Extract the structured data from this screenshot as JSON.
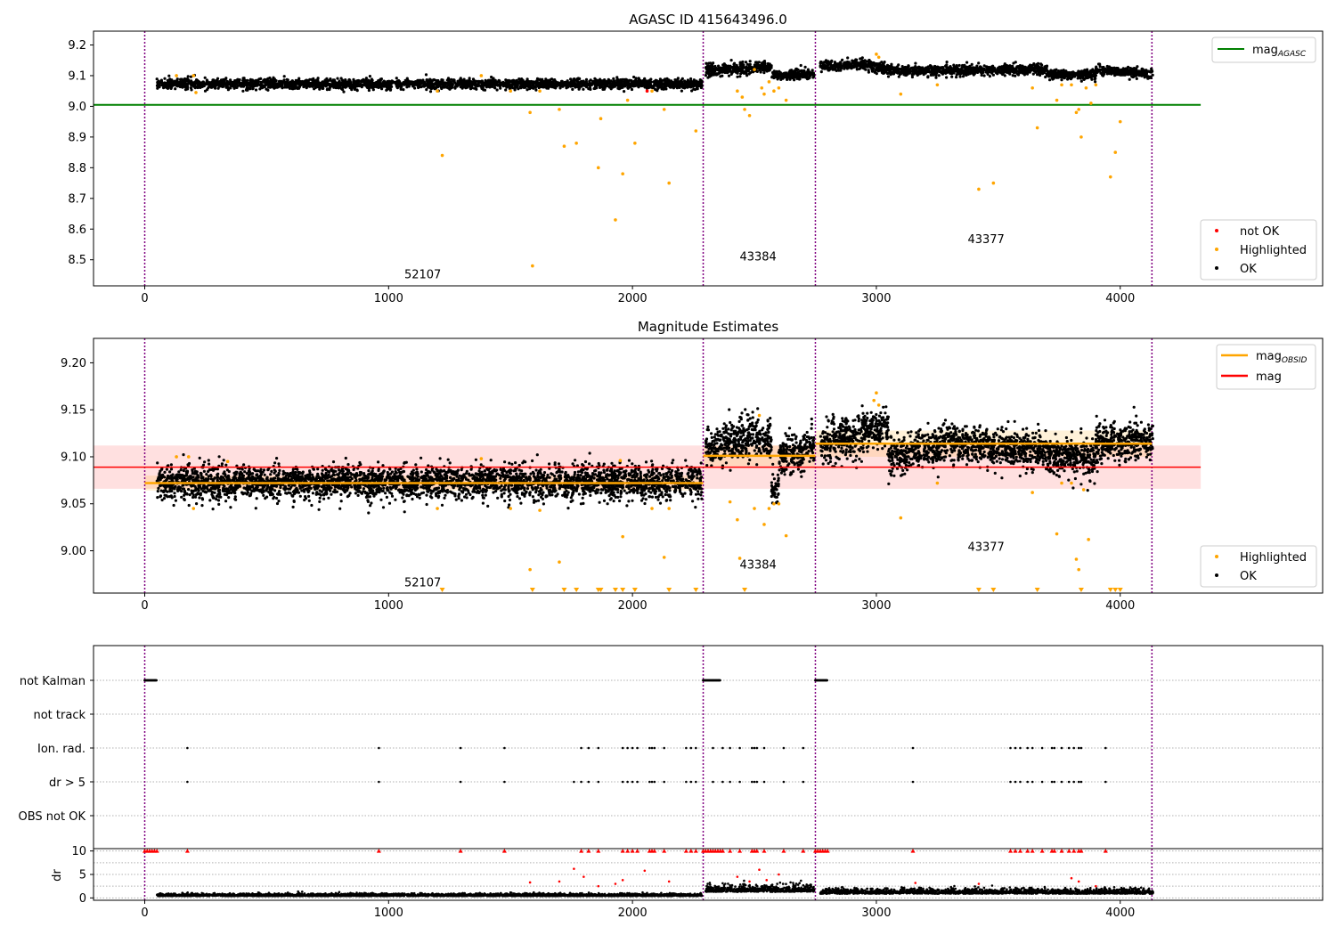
{
  "chart_data": [
    {
      "type": "scatter",
      "title": "AGASC ID 415643496.0",
      "xlabel": "",
      "ylabel": "",
      "xlim": [
        -210,
        4830
      ],
      "ylim": [
        8.415,
        9.245
      ],
      "xticks": [
        0,
        1000,
        2000,
        3000,
        4000
      ],
      "yticks": [
        8.5,
        8.6,
        8.7,
        8.8,
        8.9,
        9.0,
        9.1,
        9.2
      ],
      "ytick_labels": [
        "8.5",
        "8.6",
        "8.7",
        "8.8",
        "8.9",
        "9.0",
        "9.1",
        "9.2"
      ],
      "reference_lines": [
        {
          "name": "mag",
          "subscript": "AGASC",
          "y": 9.005,
          "x0": -210,
          "x1": 4330,
          "color": "#008000"
        }
      ],
      "obsid_boundaries": [
        0,
        2290,
        2750,
        4130
      ],
      "obsid_labels": [
        {
          "text": "52107",
          "x": 1140,
          "y": 8.44
        },
        {
          "text": "43384",
          "x": 2515,
          "y": 8.497
        },
        {
          "text": "43377",
          "x": 3450,
          "y": 8.555
        }
      ],
      "segments": [
        {
          "x0": 50,
          "x1": 2285,
          "mean": 9.073,
          "spread": 0.008,
          "trend": 0.0
        },
        {
          "x0": 2300,
          "x1": 2500,
          "mean": 9.115,
          "spread": 0.01,
          "trend": 0.01
        },
        {
          "x0": 2500,
          "x1": 2570,
          "mean": 9.128,
          "spread": 0.008,
          "trend": 0.0
        },
        {
          "x0": 2570,
          "x1": 2745,
          "mean": 9.1,
          "spread": 0.008,
          "trend": 0.006
        },
        {
          "x0": 2770,
          "x1": 2950,
          "mean": 9.13,
          "spread": 0.008,
          "trend": 0.008
        },
        {
          "x0": 2950,
          "x1": 3100,
          "mean": 9.135,
          "spread": 0.008,
          "trend": -0.02
        },
        {
          "x0": 3100,
          "x1": 3700,
          "mean": 9.115,
          "spread": 0.008,
          "trend": 0.005
        },
        {
          "x0": 3700,
          "x1": 3900,
          "mean": 9.103,
          "spread": 0.008,
          "trend": 0.0
        },
        {
          "x0": 3900,
          "x1": 4135,
          "mean": 9.118,
          "spread": 0.008,
          "trend": -0.01
        }
      ],
      "highlighted_points": [
        [
          130,
          9.1
        ],
        [
          200,
          9.1
        ],
        [
          210,
          9.045
        ],
        [
          1220,
          8.84
        ],
        [
          1200,
          9.05
        ],
        [
          1380,
          9.1
        ],
        [
          1500,
          9.05
        ],
        [
          1580,
          8.98
        ],
        [
          1590,
          8.48
        ],
        [
          1620,
          9.05
        ],
        [
          1700,
          8.99
        ],
        [
          1720,
          8.87
        ],
        [
          1770,
          8.88
        ],
        [
          1860,
          8.8
        ],
        [
          1870,
          8.96
        ],
        [
          1930,
          8.63
        ],
        [
          1960,
          8.78
        ],
        [
          1980,
          9.02
        ],
        [
          2010,
          8.88
        ],
        [
          2080,
          9.05
        ],
        [
          2130,
          8.99
        ],
        [
          2150,
          8.75
        ],
        [
          2260,
          8.92
        ],
        [
          2430,
          9.05
        ],
        [
          2450,
          9.03
        ],
        [
          2460,
          8.99
        ],
        [
          2480,
          8.97
        ],
        [
          2500,
          9.12
        ],
        [
          2530,
          9.06
        ],
        [
          2540,
          9.04
        ],
        [
          2560,
          9.08
        ],
        [
          2580,
          9.05
        ],
        [
          2600,
          9.06
        ],
        [
          2630,
          9.02
        ],
        [
          3000,
          9.17
        ],
        [
          3010,
          9.16
        ],
        [
          3100,
          9.04
        ],
        [
          3250,
          9.07
        ],
        [
          3420,
          8.73
        ],
        [
          3480,
          8.75
        ],
        [
          3640,
          9.06
        ],
        [
          3660,
          8.93
        ],
        [
          3740,
          9.02
        ],
        [
          3760,
          9.07
        ],
        [
          3800,
          9.07
        ],
        [
          3820,
          8.98
        ],
        [
          3830,
          8.99
        ],
        [
          3840,
          8.9
        ],
        [
          3860,
          9.06
        ],
        [
          3900,
          9.07
        ],
        [
          3960,
          8.77
        ],
        [
          3980,
          8.85
        ],
        [
          4000,
          8.95
        ],
        [
          3880,
          9.01
        ]
      ],
      "not_ok_points": [
        [
          2060,
          9.05
        ]
      ],
      "legend_upper": {
        "position": "upper right",
        "entries": [
          {
            "label": "mag",
            "subscript": "AGASC",
            "color": "#008000"
          }
        ]
      },
      "legend_lower": {
        "position": "lower right",
        "entries": [
          {
            "label": "not OK",
            "color": "#ff0000"
          },
          {
            "label": "Highlighted",
            "color": "#ffa500"
          },
          {
            "label": "OK",
            "color": "#000000"
          }
        ]
      }
    },
    {
      "type": "scatter",
      "title": "Magnitude Estimates",
      "xlabel": "",
      "ylabel": "",
      "xlim": [
        -210,
        4830
      ],
      "ylim": [
        8.955,
        9.226
      ],
      "xticks": [
        0,
        1000,
        2000,
        3000,
        4000
      ],
      "yticks": [
        9.0,
        9.05,
        9.1,
        9.15,
        9.2
      ],
      "ytick_labels": [
        "9.00",
        "9.05",
        "9.10",
        "9.15",
        "9.20"
      ],
      "mag_line": {
        "name": "mag",
        "y": 9.089,
        "band": [
          9.066,
          9.112
        ],
        "x0": -210,
        "x1": 4330,
        "color": "#ff0000"
      },
      "obsid_means": [
        {
          "x0": 0,
          "x1": 2290,
          "y": 9.072,
          "band": [
            9.064,
            9.08
          ]
        },
        {
          "x0": 2290,
          "x1": 2750,
          "y": 9.101,
          "band": [
            9.09,
            9.112
          ]
        },
        {
          "x0": 2750,
          "x1": 4130,
          "y": 9.114,
          "band": [
            9.1,
            9.128
          ]
        }
      ],
      "obsid_boundaries": [
        0,
        2290,
        2750,
        4130
      ],
      "obsid_labels": [
        {
          "text": "52107",
          "x": 1140,
          "y": 8.962
        },
        {
          "text": "43384",
          "x": 2515,
          "y": 8.981
        },
        {
          "text": "43377",
          "x": 3450,
          "y": 9.0
        }
      ],
      "segments": [
        {
          "x0": 50,
          "x1": 2285,
          "mean": 9.073,
          "spread": 0.009,
          "trend": 0.0
        },
        {
          "x0": 2300,
          "x1": 2500,
          "mean": 9.108,
          "spread": 0.012,
          "trend": 0.015
        },
        {
          "x0": 2500,
          "x1": 2570,
          "mean": 9.12,
          "spread": 0.01,
          "trend": 0.0
        },
        {
          "x0": 2570,
          "x1": 2600,
          "mean": 9.065,
          "spread": 0.01,
          "trend": 0.0
        },
        {
          "x0": 2600,
          "x1": 2745,
          "mean": 9.1,
          "spread": 0.01,
          "trend": 0.01
        },
        {
          "x0": 2770,
          "x1": 2950,
          "mean": 9.115,
          "spread": 0.012,
          "trend": 0.01
        },
        {
          "x0": 2950,
          "x1": 3050,
          "mean": 9.13,
          "spread": 0.01,
          "trend": 0.0
        },
        {
          "x0": 3050,
          "x1": 3300,
          "mean": 9.1,
          "spread": 0.01,
          "trend": 0.015
        },
        {
          "x0": 3300,
          "x1": 3700,
          "mean": 9.115,
          "spread": 0.01,
          "trend": -0.01
        },
        {
          "x0": 3700,
          "x1": 3900,
          "mean": 9.1,
          "spread": 0.01,
          "trend": 0.0
        },
        {
          "x0": 3900,
          "x1": 4135,
          "mean": 9.115,
          "spread": 0.01,
          "trend": 0.0
        }
      ],
      "highlighted_points": [
        [
          130,
          9.1
        ],
        [
          180,
          9.1
        ],
        [
          200,
          9.045
        ],
        [
          340,
          9.095
        ],
        [
          1200,
          9.045
        ],
        [
          1380,
          9.098
        ],
        [
          1500,
          9.045
        ],
        [
          1580,
          8.98
        ],
        [
          1620,
          9.043
        ],
        [
          1700,
          8.988
        ],
        [
          1960,
          9.015
        ],
        [
          1950,
          9.096
        ],
        [
          2080,
          9.045
        ],
        [
          2130,
          8.993
        ],
        [
          2150,
          9.045
        ],
        [
          2400,
          9.052
        ],
        [
          2430,
          9.033
        ],
        [
          2440,
          8.992
        ],
        [
          2500,
          9.045
        ],
        [
          2520,
          9.144
        ],
        [
          2540,
          9.028
        ],
        [
          2560,
          9.045
        ],
        [
          2580,
          9.05
        ],
        [
          2600,
          9.05
        ],
        [
          2630,
          9.016
        ],
        [
          2990,
          9.16
        ],
        [
          3000,
          9.168
        ],
        [
          3010,
          9.155
        ],
        [
          3100,
          9.035
        ],
        [
          3250,
          9.072
        ],
        [
          3640,
          9.062
        ],
        [
          3740,
          9.018
        ],
        [
          3760,
          9.072
        ],
        [
          3800,
          9.072
        ],
        [
          3820,
          8.991
        ],
        [
          3830,
          8.98
        ],
        [
          3850,
          9.065
        ],
        [
          3870,
          9.012
        ]
      ],
      "below_range_markers": [
        1220,
        1590,
        1720,
        1770,
        1860,
        1870,
        1930,
        1960,
        2010,
        2150,
        2260,
        2460,
        3420,
        3480,
        3660,
        3840,
        3960,
        3980,
        4000
      ],
      "legend_upper": {
        "position": "upper right",
        "entries": [
          {
            "label": "mag",
            "subscript": "OBSID",
            "color": "#ffa500"
          },
          {
            "label": "mag",
            "subscript": "",
            "color": "#ff0000"
          }
        ]
      },
      "legend_lower": {
        "position": "lower right",
        "entries": [
          {
            "label": "Highlighted",
            "color": "#ffa500"
          },
          {
            "label": "OK",
            "color": "#000000"
          }
        ]
      }
    },
    {
      "type": "scatter",
      "title": "",
      "xlabel": "",
      "ylabel": "",
      "xlim": [
        -210,
        4830
      ],
      "categories": [
        "not Kalman",
        "not track",
        "Ion. rad.",
        "dr > 5",
        "OBS not OK"
      ],
      "obsid_boundaries": [
        0,
        2290,
        2750,
        4130
      ],
      "flags": {
        "not Kalman": [
          [
            0,
            50
          ],
          [
            2290,
            2360
          ],
          [
            2750,
            2800
          ]
        ],
        "not track": [],
        "Ion. rad.": [
          175,
          960,
          1295,
          1475,
          1790,
          1820,
          1860,
          1960,
          1980,
          2000,
          2020,
          2070,
          2080,
          2090,
          2130,
          2220,
          2240,
          2260,
          2330,
          2370,
          2400,
          2440,
          2490,
          2500,
          2510,
          2540,
          2620,
          2700,
          3150,
          3550,
          3570,
          3590,
          3620,
          3640,
          3680,
          3720,
          3730,
          3760,
          3790,
          3810,
          3830,
          3840,
          3940
        ],
        "dr > 5": [
          175,
          960,
          1295,
          1475,
          1760,
          1790,
          1820,
          1860,
          1960,
          1980,
          2000,
          2020,
          2070,
          2080,
          2090,
          2130,
          2220,
          2240,
          2260,
          2330,
          2370,
          2400,
          2440,
          2490,
          2500,
          2510,
          2540,
          2620,
          2700,
          3150,
          3550,
          3570,
          3590,
          3620,
          3640,
          3680,
          3720,
          3730,
          3760,
          3790,
          3810,
          3830,
          3840,
          3940
        ],
        "OBS not OK": []
      }
    },
    {
      "type": "scatter",
      "title": "",
      "xlabel": "",
      "ylabel": "dr",
      "xlim": [
        -210,
        4830
      ],
      "ylim": [
        -0.5,
        10.5
      ],
      "yticks": [
        0,
        5,
        10
      ],
      "ytick_labels": [
        "0",
        "5",
        "10"
      ],
      "xticks": [
        0,
        1000,
        2000,
        3000,
        4000
      ],
      "obsid_boundaries": [
        0,
        2290,
        2750,
        4130
      ],
      "clipped_markers_at_10": [
        0,
        10,
        20,
        30,
        40,
        50,
        175,
        960,
        1295,
        1475,
        1790,
        1820,
        1860,
        1960,
        1980,
        2000,
        2020,
        2070,
        2080,
        2090,
        2130,
        2220,
        2240,
        2260,
        2290,
        2300,
        2310,
        2320,
        2330,
        2340,
        2350,
        2360,
        2370,
        2400,
        2440,
        2490,
        2500,
        2510,
        2540,
        2620,
        2700,
        2750,
        2760,
        2770,
        2780,
        2790,
        2800,
        3150,
        3550,
        3570,
        3590,
        3620,
        3640,
        3680,
        3720,
        3730,
        3760,
        3790,
        3810,
        3830,
        3840,
        3940
      ],
      "elevated_points": [
        [
          1580,
          3.3
        ],
        [
          1700,
          3.5
        ],
        [
          1760,
          6.2
        ],
        [
          1800,
          4.5
        ],
        [
          1860,
          2.5
        ],
        [
          1930,
          3.0
        ],
        [
          1960,
          3.8
        ],
        [
          2050,
          5.8
        ],
        [
          2150,
          3.5
        ],
        [
          2430,
          4.5
        ],
        [
          2480,
          3.5
        ],
        [
          2520,
          6.0
        ],
        [
          2550,
          3.8
        ],
        [
          2600,
          5.0
        ],
        [
          3160,
          3.2
        ],
        [
          3420,
          3.0
        ],
        [
          3800,
          4.2
        ],
        [
          3830,
          3.5
        ],
        [
          3900,
          2.5
        ]
      ],
      "segments": [
        {
          "x0": 50,
          "x1": 2285,
          "base": 0.4,
          "spread": 0.25
        },
        {
          "x0": 2300,
          "x1": 2745,
          "base": 1.3,
          "spread": 0.7
        },
        {
          "x0": 2770,
          "x1": 4135,
          "base": 0.9,
          "spread": 0.5
        }
      ]
    }
  ]
}
